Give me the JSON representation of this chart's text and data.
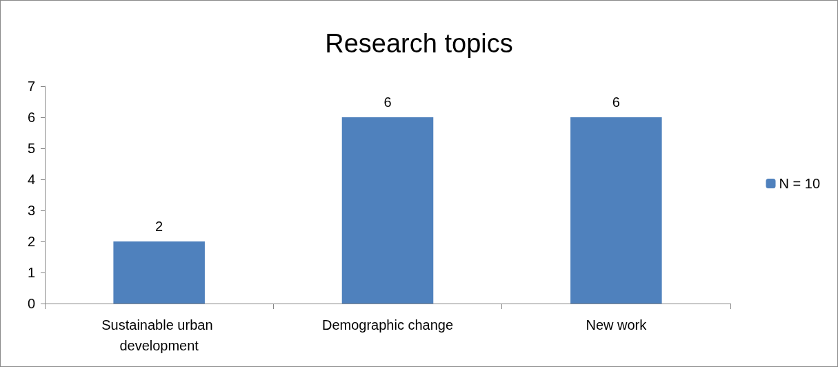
{
  "chart_data": {
    "type": "bar",
    "title": "Research topics",
    "categories": [
      "Sustainable urban development",
      "Demographic change",
      "New work"
    ],
    "series": [
      {
        "name": "N = 10",
        "color": "#4f81bd",
        "values": [
          2,
          6,
          6
        ]
      }
    ],
    "ylim": [
      0,
      7
    ],
    "yticks": [
      0,
      1,
      2,
      3,
      4,
      5,
      6,
      7
    ],
    "grid": false,
    "legend": "right",
    "data_labels": true
  }
}
